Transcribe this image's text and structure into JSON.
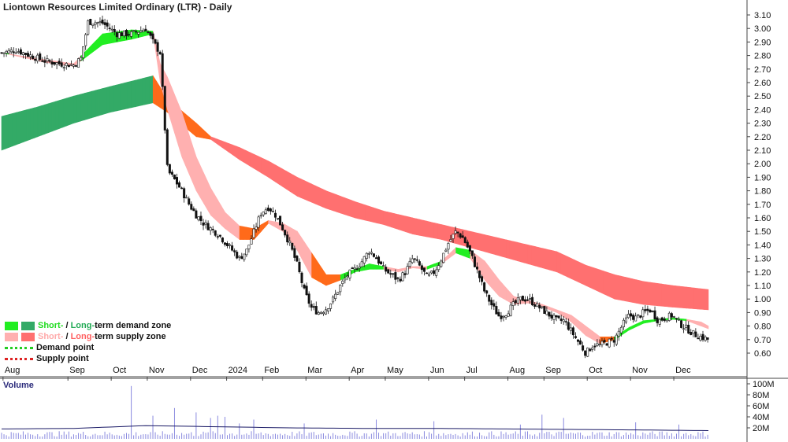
{
  "title": "Liontown Resources Limited Ordinary (LTR) - Daily",
  "volume_title": "Volume",
  "legend": {
    "demand_short": "Short-",
    "demand_sep": " / ",
    "demand_long": "Long-",
    "demand_rest": "term demand zone",
    "supply_short": "Short-",
    "supply_sep": " / ",
    "supply_long": "Long-",
    "supply_rest": "term supply zone",
    "demand_point": "Demand point",
    "supply_point": "Supply point"
  },
  "colors": {
    "short_demand": "#22ee22",
    "long_demand": "#33aa66",
    "short_supply": "#ffb0b0",
    "long_supply": "#ff7070",
    "transition": "#ff6a1a",
    "volume_bar": "#8a8adf",
    "volume_avg": "#1a1a66",
    "demand_point": "#22cc22",
    "supply_point": "#dd2222"
  },
  "chart_data": {
    "type": "line",
    "price_axis": {
      "min": 0.6,
      "max": 3.1,
      "ticks": [
        "3.10",
        "3.00",
        "2.90",
        "2.80",
        "2.70",
        "2.60",
        "2.50",
        "2.40",
        "2.30",
        "2.20",
        "2.10",
        "2.00",
        "1.90",
        "1.80",
        "1.70",
        "1.60",
        "1.50",
        "1.40",
        "1.30",
        "1.20",
        "1.10",
        "1.00",
        "0.90",
        "0.80",
        "0.70",
        "0.60"
      ]
    },
    "volume_axis": {
      "ticks": [
        "100M",
        "80M",
        "60M",
        "40M",
        "20M"
      ],
      "max": 100
    },
    "months": [
      "Aug",
      "Sep",
      "Oct",
      "Nov",
      "Dec",
      "2024",
      "Feb",
      "Mar",
      "Apr",
      "May",
      "Jun",
      "Jul",
      "Aug",
      "Sep",
      "Oct",
      "Nov",
      "Dec"
    ],
    "price_path": [
      [
        0,
        2.82
      ],
      [
        2,
        2.84
      ],
      [
        4,
        2.8
      ],
      [
        6,
        2.76
      ],
      [
        8,
        2.74
      ],
      [
        10,
        2.73
      ],
      [
        11,
        2.78
      ],
      [
        12,
        3.05
      ],
      [
        14,
        3.04
      ],
      [
        16,
        2.96
      ],
      [
        18,
        2.96
      ],
      [
        20,
        3.0
      ],
      [
        21,
        2.9
      ],
      [
        22,
        2.82
      ],
      [
        23,
        1.95
      ],
      [
        24,
        1.88
      ],
      [
        25,
        1.8
      ],
      [
        26,
        1.7
      ],
      [
        27,
        1.62
      ],
      [
        28,
        1.56
      ],
      [
        29,
        1.52
      ],
      [
        30,
        1.48
      ],
      [
        31,
        1.42
      ],
      [
        32,
        1.36
      ],
      [
        33,
        1.3
      ],
      [
        34,
        1.36
      ],
      [
        35,
        1.5
      ],
      [
        36,
        1.64
      ],
      [
        37,
        1.68
      ],
      [
        38,
        1.62
      ],
      [
        39,
        1.52
      ],
      [
        40,
        1.4
      ],
      [
        41,
        1.25
      ],
      [
        42,
        1.05
      ],
      [
        43,
        0.93
      ],
      [
        44,
        0.9
      ],
      [
        45,
        0.93
      ],
      [
        46,
        1.0
      ],
      [
        47,
        1.1
      ],
      [
        48,
        1.18
      ],
      [
        49,
        1.22
      ],
      [
        50,
        1.28
      ],
      [
        51,
        1.36
      ],
      [
        52,
        1.3
      ],
      [
        53,
        1.22
      ],
      [
        54,
        1.18
      ],
      [
        55,
        1.14
      ],
      [
        56,
        1.2
      ],
      [
        57,
        1.3
      ],
      [
        58,
        1.24
      ],
      [
        59,
        1.16
      ],
      [
        60,
        1.2
      ],
      [
        61,
        1.3
      ],
      [
        62,
        1.42
      ],
      [
        63,
        1.5
      ],
      [
        64,
        1.45
      ],
      [
        65,
        1.34
      ],
      [
        66,
        1.2
      ],
      [
        67,
        1.05
      ],
      [
        68,
        0.95
      ],
      [
        69,
        0.87
      ],
      [
        70,
        0.9
      ],
      [
        71,
        0.96
      ],
      [
        72,
        1.0
      ],
      [
        73,
        1.0
      ],
      [
        74,
        0.96
      ],
      [
        75,
        0.92
      ],
      [
        76,
        0.88
      ],
      [
        77,
        0.84
      ],
      [
        78,
        0.84
      ],
      [
        79,
        0.76
      ],
      [
        80,
        0.68
      ],
      [
        81,
        0.6
      ],
      [
        82,
        0.66
      ],
      [
        83,
        0.66
      ],
      [
        84,
        0.68
      ],
      [
        85,
        0.7
      ],
      [
        86,
        0.8
      ],
      [
        87,
        0.88
      ],
      [
        88,
        0.86
      ],
      [
        89,
        0.9
      ],
      [
        90,
        0.92
      ],
      [
        91,
        0.84
      ],
      [
        92,
        0.86
      ],
      [
        93,
        0.88
      ],
      [
        94,
        0.82
      ],
      [
        95,
        0.78
      ],
      [
        96,
        0.74
      ],
      [
        97,
        0.72
      ],
      [
        98,
        0.7
      ]
    ],
    "short_band": [
      [
        0,
        2.82,
        2.82
      ],
      [
        6,
        2.75,
        2.77
      ],
      [
        10,
        2.72,
        2.74
      ],
      [
        14,
        2.88,
        2.96
      ],
      [
        18,
        2.92,
        2.99
      ],
      [
        21,
        2.96,
        2.98
      ],
      [
        22,
        2.6,
        2.74
      ],
      [
        23,
        2.4,
        2.64
      ],
      [
        25,
        2.05,
        2.38
      ],
      [
        27,
        1.8,
        2.05
      ],
      [
        29,
        1.62,
        1.82
      ],
      [
        31,
        1.52,
        1.64
      ],
      [
        33,
        1.44,
        1.54
      ],
      [
        35,
        1.44,
        1.52
      ],
      [
        37,
        1.56,
        1.58
      ],
      [
        39,
        1.5,
        1.56
      ],
      [
        41,
        1.36,
        1.5
      ],
      [
        43,
        1.16,
        1.34
      ],
      [
        45,
        1.1,
        1.18
      ],
      [
        47,
        1.14,
        1.18
      ],
      [
        49,
        1.2,
        1.22
      ],
      [
        51,
        1.22,
        1.26
      ],
      [
        53,
        1.22,
        1.24
      ],
      [
        55,
        1.2,
        1.22
      ],
      [
        57,
        1.23,
        1.24
      ],
      [
        59,
        1.22,
        1.24
      ],
      [
        61,
        1.26,
        1.28
      ],
      [
        63,
        1.34,
        1.38
      ],
      [
        65,
        1.3,
        1.36
      ],
      [
        67,
        1.14,
        1.28
      ],
      [
        69,
        1.02,
        1.14
      ],
      [
        71,
        0.96,
        1.02
      ],
      [
        73,
        0.97,
        0.99
      ],
      [
        75,
        0.94,
        0.96
      ],
      [
        77,
        0.9,
        0.92
      ],
      [
        79,
        0.83,
        0.88
      ],
      [
        81,
        0.73,
        0.8
      ],
      [
        83,
        0.67,
        0.72
      ],
      [
        85,
        0.7,
        0.72
      ],
      [
        87,
        0.77,
        0.79
      ],
      [
        89,
        0.82,
        0.84
      ],
      [
        91,
        0.84,
        0.85
      ],
      [
        93,
        0.85,
        0.86
      ],
      [
        95,
        0.84,
        0.85
      ],
      [
        97,
        0.8,
        0.83
      ],
      [
        98,
        0.78,
        0.8
      ]
    ],
    "long_band": [
      [
        0,
        2.1,
        2.35
      ],
      [
        5,
        2.2,
        2.42
      ],
      [
        10,
        2.3,
        2.5
      ],
      [
        15,
        2.38,
        2.57
      ],
      [
        21,
        2.45,
        2.65
      ],
      [
        23,
        2.38,
        2.48
      ],
      [
        27,
        2.2,
        2.3
      ],
      [
        29,
        2.18,
        2.2
      ],
      [
        33,
        2.03,
        2.12
      ],
      [
        37,
        1.9,
        2.02
      ],
      [
        41,
        1.76,
        1.9
      ],
      [
        45,
        1.67,
        1.8
      ],
      [
        49,
        1.6,
        1.72
      ],
      [
        53,
        1.55,
        1.65
      ],
      [
        57,
        1.48,
        1.6
      ],
      [
        61,
        1.44,
        1.55
      ],
      [
        65,
        1.38,
        1.5
      ],
      [
        69,
        1.32,
        1.45
      ],
      [
        73,
        1.26,
        1.4
      ],
      [
        77,
        1.2,
        1.35
      ],
      [
        81,
        1.1,
        1.25
      ],
      [
        85,
        1.0,
        1.18
      ],
      [
        89,
        0.96,
        1.13
      ],
      [
        93,
        0.94,
        1.1
      ],
      [
        98,
        0.92,
        1.07
      ]
    ],
    "volume_avg": [
      [
        0,
        18
      ],
      [
        10,
        19
      ],
      [
        20,
        24
      ],
      [
        30,
        22
      ],
      [
        40,
        20
      ],
      [
        50,
        19
      ],
      [
        60,
        19
      ],
      [
        70,
        18
      ],
      [
        80,
        17
      ],
      [
        90,
        16
      ],
      [
        98,
        15
      ]
    ],
    "volume_spikes": [
      [
        18,
        96
      ],
      [
        21,
        42
      ],
      [
        24,
        56
      ],
      [
        27,
        48
      ],
      [
        29,
        38
      ],
      [
        30,
        42
      ],
      [
        31,
        40
      ],
      [
        33,
        28
      ],
      [
        35,
        35
      ],
      [
        42,
        28
      ],
      [
        52,
        35
      ],
      [
        60,
        32
      ],
      [
        72,
        26
      ],
      [
        75,
        44
      ],
      [
        78,
        38
      ],
      [
        88,
        30
      ],
      [
        94,
        26
      ]
    ]
  }
}
